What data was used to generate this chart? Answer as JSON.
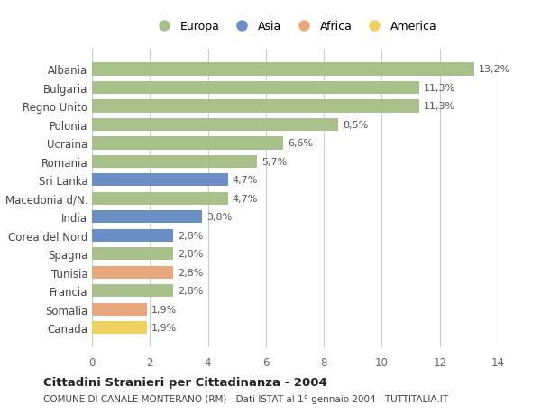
{
  "countries": [
    "Albania",
    "Bulgaria",
    "Regno Unito",
    "Polonia",
    "Ucraina",
    "Romania",
    "Sri Lanka",
    "Macedonia d/N.",
    "India",
    "Corea del Nord",
    "Spagna",
    "Tunisia",
    "Francia",
    "Somalia",
    "Canada"
  ],
  "values": [
    13.2,
    11.3,
    11.3,
    8.5,
    6.6,
    5.7,
    4.7,
    4.7,
    3.8,
    2.8,
    2.8,
    2.8,
    2.8,
    1.9,
    1.9
  ],
  "labels": [
    "13,2%",
    "11,3%",
    "11,3%",
    "8,5%",
    "6,6%",
    "5,7%",
    "4,7%",
    "4,7%",
    "3,8%",
    "2,8%",
    "2,8%",
    "2,8%",
    "2,8%",
    "1,9%",
    "1,9%"
  ],
  "continents": [
    "Europa",
    "Europa",
    "Europa",
    "Europa",
    "Europa",
    "Europa",
    "Asia",
    "Europa",
    "Asia",
    "Asia",
    "Europa",
    "Africa",
    "Europa",
    "Africa",
    "America"
  ],
  "continent_colors": {
    "Europa": "#a8c08a",
    "Asia": "#6b8fc4",
    "Africa": "#e8a87c",
    "America": "#f0d060"
  },
  "legend_order": [
    "Europa",
    "Asia",
    "Africa",
    "America"
  ],
  "title": "Cittadini Stranieri per Cittadinanza - 2004",
  "subtitle": "COMUNE DI CANALE MONTERANO (RM) - Dati ISTAT al 1° gennaio 2004 - TUTTITALIA.IT",
  "xlim": [
    0,
    14
  ],
  "xticks": [
    0,
    2,
    4,
    6,
    8,
    10,
    12,
    14
  ],
  "bg_color": "#ffffff",
  "grid_color": "#cccccc",
  "bar_height": 0.7
}
